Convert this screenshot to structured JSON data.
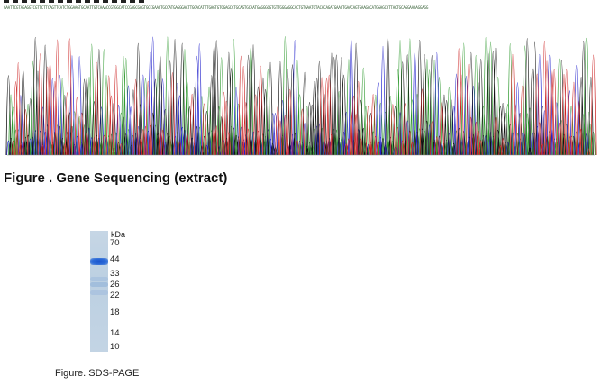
{
  "sequencing": {
    "title": "Figure . Gene Sequencing (extract)",
    "sequence": "GAATTCGTAGAGGTCGTTCTTCAGTTCATCTGGAAGTGCAATTGTCAAACCGTGGCATCCGAGCGAGTGCCGAAGTGCCATGAGGGAATTGGACATTTGAGTGTGGAGCCTGCAGTGCAATGAGGGGGTGTTGGGAGGCACTGTGAATGTACACAGATGAAGTGAACAGTGAAGACATGGAGCCTTACTGCAGGAAGAGGAGG",
    "trace_colors": {
      "A": "#2e9a2e",
      "C": "#2222cc",
      "G": "#111111",
      "T": "#cc2222"
    }
  },
  "gel": {
    "kda_label": "kDa",
    "markers": [
      "70",
      "44",
      "33",
      "26",
      "22",
      "18",
      "14",
      "10"
    ],
    "band_color": "#1f5fd0",
    "caption": "Figure. SDS-PAGE"
  }
}
